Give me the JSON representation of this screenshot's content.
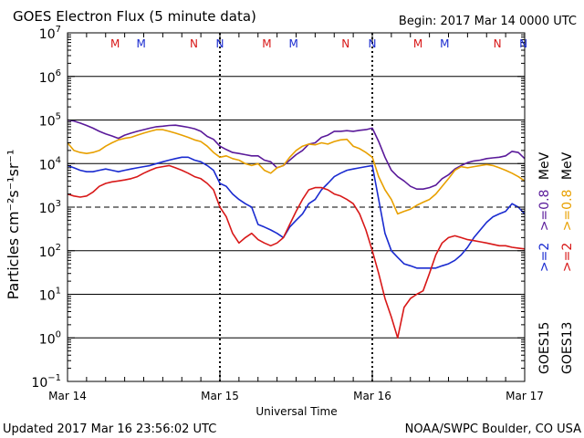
{
  "chart_data": {
    "type": "line",
    "title": "GOES Electron Flux (5 minute data)",
    "begin": "Begin: 2017 Mar 14 0000 UTC",
    "xlabel": "Universal Time",
    "ylabel": "Particles cm⁻²s⁻¹sr⁻¹",
    "updated": "Updated 2017 Mar 16 23:56:02 UTC",
    "credit": "NOAA/SWPC Boulder, CO USA",
    "x_unit": "hours since 2017 Mar 14 0000 UTC",
    "xlim": [
      0,
      72
    ],
    "ylim_log10": [
      -1,
      7
    ],
    "log_scale": true,
    "x_ticks": [
      {
        "x": 0,
        "label": "Mar 14"
      },
      {
        "x": 24,
        "label": "Mar 15"
      },
      {
        "x": 48,
        "label": "Mar 16"
      },
      {
        "x": 72,
        "label": "Mar 17"
      }
    ],
    "y_ticks": [
      {
        "exp": 7,
        "base": "10",
        "sup": "7"
      },
      {
        "exp": 6,
        "base": "10",
        "sup": "6"
      },
      {
        "exp": 5,
        "base": "10",
        "sup": "5"
      },
      {
        "exp": 4,
        "base": "10",
        "sup": "4"
      },
      {
        "exp": 3,
        "base": "10",
        "sup": "3"
      },
      {
        "exp": 2,
        "base": "10",
        "sup": "2"
      },
      {
        "exp": 1,
        "base": "10",
        "sup": "1"
      },
      {
        "exp": 0,
        "base": "10",
        "sup": "0"
      },
      {
        "exp": -1,
        "base": "10",
        "sup": "−1"
      }
    ],
    "threshold_log10": 3,
    "markers": [
      {
        "x": 7.5,
        "label": "M",
        "color": "#d81818"
      },
      {
        "x": 11.6,
        "label": "M",
        "color": "#1a2bd0"
      },
      {
        "x": 19.9,
        "label": "N",
        "color": "#d81818"
      },
      {
        "x": 24.0,
        "label": "N",
        "color": "#1a2bd0"
      },
      {
        "x": 31.4,
        "label": "M",
        "color": "#d81818"
      },
      {
        "x": 35.6,
        "label": "M",
        "color": "#1a2bd0"
      },
      {
        "x": 43.8,
        "label": "N",
        "color": "#d81818"
      },
      {
        "x": 48.0,
        "label": "N",
        "color": "#1a2bd0"
      },
      {
        "x": 55.2,
        "label": "M",
        "color": "#d81818"
      },
      {
        "x": 59.4,
        "label": "M",
        "color": "#1a2bd0"
      },
      {
        "x": 67.7,
        "label": "N",
        "color": "#d81818"
      },
      {
        "x": 71.8,
        "label": "N",
        "color": "#1a2bd0"
      }
    ],
    "legend": [
      {
        "satellite": "GOES15",
        "low": ">=2",
        "high": ">=0.8",
        "unit": "MeV"
      },
      {
        "satellite": "GOES13",
        "low": ">=2",
        "high": ">=0.8",
        "unit": "MeV"
      }
    ],
    "legend_colors": {
      "GOES15_low": "#1a2bd0",
      "GOES15_high": "#5a1a9a",
      "GOES13_low": "#d81818",
      "GOES13_high": "#e8a000"
    },
    "series": [
      {
        "name": "GOES15 >=0.8 MeV",
        "color": "#5a1a9a",
        "x": [
          0,
          1,
          2,
          3,
          4,
          5,
          6,
          7,
          8,
          9,
          10,
          11,
          12,
          13,
          14,
          15,
          16,
          17,
          18,
          19,
          20,
          21,
          22,
          23,
          24,
          25,
          26,
          27,
          28,
          29,
          30,
          31,
          32,
          33,
          34,
          35,
          36,
          37,
          38,
          39,
          40,
          41,
          42,
          43,
          44,
          45,
          46,
          47,
          48,
          49,
          50,
          51,
          52,
          53,
          54,
          55,
          56,
          57,
          58,
          59,
          60,
          61,
          62,
          63,
          64,
          65,
          66,
          67,
          68,
          69,
          70,
          71,
          72
        ],
        "y": [
          100000,
          95000,
          85000,
          75000,
          65000,
          55000,
          48000,
          43000,
          38000,
          45000,
          50000,
          55000,
          60000,
          65000,
          70000,
          72000,
          75000,
          76000,
          72000,
          68000,
          63000,
          55000,
          42000,
          36000,
          25000,
          21000,
          18000,
          17000,
          16000,
          15000,
          15000,
          12000,
          11000,
          8000,
          9000,
          12000,
          16000,
          20000,
          28000,
          30000,
          40000,
          45000,
          55000,
          55000,
          57000,
          55000,
          58000,
          60000,
          65000,
          32000,
          14000,
          7000,
          5000,
          4000,
          3000,
          2600,
          2600,
          2800,
          3200,
          4500,
          5500,
          7500,
          9000,
          10500,
          11500,
          12000,
          13000,
          13500,
          14000,
          15000,
          19000,
          18000,
          13000
        ]
      },
      {
        "name": "GOES13 >=0.8 MeV",
        "color": "#e8a000",
        "x": [
          0,
          1,
          2,
          3,
          4,
          5,
          6,
          7,
          8,
          9,
          10,
          11,
          12,
          13,
          14,
          15,
          16,
          17,
          18,
          19,
          20,
          21,
          22,
          23,
          24,
          25,
          26,
          27,
          28,
          29,
          30,
          31,
          32,
          33,
          34,
          35,
          36,
          37,
          38,
          39,
          40,
          41,
          42,
          43,
          44,
          45,
          46,
          47,
          48,
          49,
          50,
          51,
          52,
          53,
          54,
          55,
          56,
          57,
          58,
          59,
          60,
          61,
          62,
          63,
          64,
          65,
          66,
          67,
          68,
          69,
          70,
          71,
          72
        ],
        "y": [
          30000,
          20000,
          18000,
          17000,
          18000,
          20000,
          25000,
          30000,
          35000,
          38000,
          40000,
          45000,
          50000,
          55000,
          60000,
          60000,
          55000,
          50000,
          45000,
          40000,
          35000,
          32000,
          25000,
          18000,
          14000,
          15000,
          13000,
          12000,
          10000,
          9000,
          10000,
          7000,
          6000,
          8000,
          9000,
          14000,
          20000,
          25000,
          28000,
          27000,
          30000,
          28000,
          32000,
          35000,
          36000,
          25000,
          22000,
          18000,
          14000,
          5000,
          2500,
          1500,
          700,
          800,
          900,
          1100,
          1300,
          1500,
          2000,
          3000,
          4500,
          7000,
          8500,
          8000,
          8500,
          9000,
          9500,
          9000,
          8000,
          7000,
          6000,
          5000,
          4000
        ]
      },
      {
        "name": "GOES15 >=2 MeV",
        "color": "#1a2bd0",
        "x": [
          0,
          1,
          2,
          3,
          4,
          5,
          6,
          7,
          8,
          9,
          10,
          11,
          12,
          13,
          14,
          15,
          16,
          17,
          18,
          19,
          20,
          21,
          22,
          23,
          24,
          25,
          26,
          27,
          28,
          29,
          30,
          31,
          32,
          33,
          34,
          35,
          36,
          37,
          38,
          39,
          40,
          41,
          42,
          43,
          44,
          45,
          46,
          47,
          48,
          49,
          50,
          51,
          52,
          53,
          54,
          55,
          56,
          57,
          58,
          59,
          60,
          61,
          62,
          63,
          64,
          65,
          66,
          67,
          68,
          69,
          70,
          71,
          72
        ],
        "y": [
          9000,
          8000,
          7000,
          6500,
          6500,
          7000,
          7500,
          7000,
          6500,
          7000,
          7500,
          8000,
          8500,
          9000,
          10000,
          11000,
          12000,
          13000,
          14000,
          14000,
          12000,
          11000,
          9000,
          7000,
          3500,
          3000,
          2000,
          1500,
          1200,
          1000,
          400,
          350,
          300,
          250,
          200,
          350,
          500,
          700,
          1200,
          1500,
          2500,
          3500,
          5000,
          6000,
          7000,
          7500,
          8000,
          8500,
          9000,
          1500,
          250,
          100,
          70,
          50,
          45,
          40,
          40,
          40,
          40,
          45,
          50,
          60,
          80,
          120,
          200,
          300,
          450,
          600,
          700,
          800,
          1200,
          1000,
          700
        ]
      },
      {
        "name": "GOES13 >=2 MeV",
        "color": "#d81818",
        "x": [
          0,
          1,
          2,
          3,
          4,
          5,
          6,
          7,
          8,
          9,
          10,
          11,
          12,
          13,
          14,
          15,
          16,
          17,
          18,
          19,
          20,
          21,
          22,
          23,
          24,
          25,
          26,
          27,
          28,
          29,
          30,
          31,
          32,
          33,
          34,
          35,
          36,
          37,
          38,
          39,
          40,
          41,
          42,
          43,
          44,
          45,
          46,
          47,
          48,
          49,
          50,
          51,
          52,
          53,
          54,
          55,
          56,
          57,
          58,
          59,
          60,
          61,
          62,
          63,
          64,
          65,
          66,
          67,
          68,
          69,
          70,
          71,
          72
        ],
        "y": [
          2000,
          1800,
          1700,
          1800,
          2200,
          3000,
          3500,
          3800,
          4000,
          4200,
          4500,
          5000,
          6000,
          7000,
          8000,
          8500,
          9000,
          8000,
          7000,
          6000,
          5000,
          4500,
          3500,
          2500,
          1000,
          600,
          250,
          150,
          200,
          250,
          180,
          150,
          130,
          150,
          200,
          400,
          800,
          1500,
          2500,
          2800,
          2800,
          2500,
          2000,
          1800,
          1500,
          1200,
          700,
          300,
          100,
          30,
          8,
          3,
          1,
          5,
          8,
          10,
          12,
          30,
          80,
          150,
          200,
          220,
          200,
          180,
          170,
          160,
          150,
          140,
          130,
          130,
          120,
          115,
          110
        ]
      }
    ]
  }
}
